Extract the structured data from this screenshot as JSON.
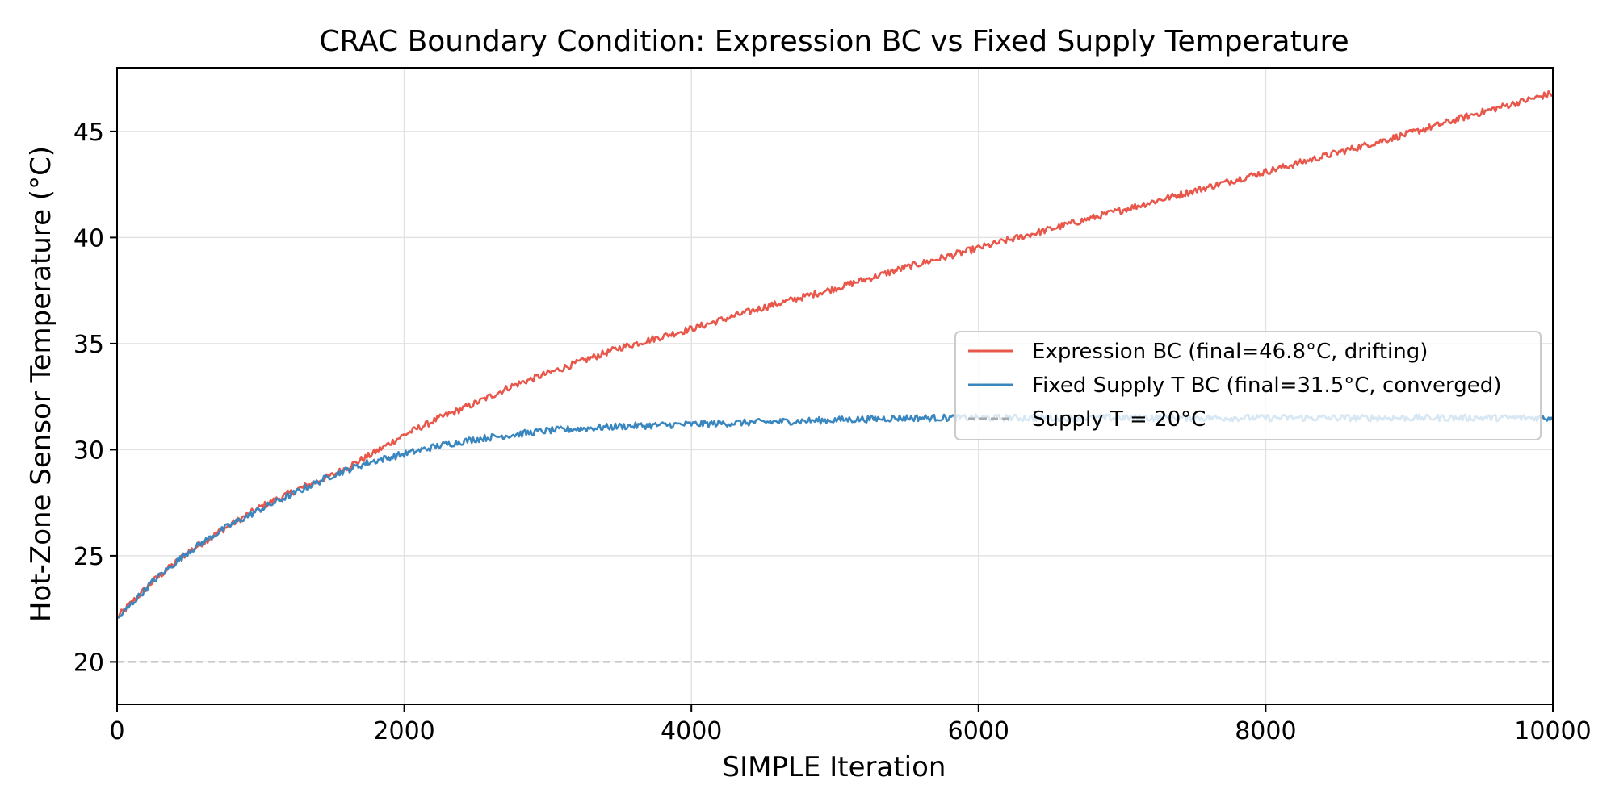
{
  "chart_data": {
    "type": "line",
    "title": "CRAC Boundary Condition: Expression BC vs Fixed Supply Temperature",
    "xlabel": "SIMPLE Iteration",
    "ylabel": "Hot-Zone Sensor Temperature (°C)",
    "xlim": [
      0,
      10000
    ],
    "ylim": [
      18,
      48
    ],
    "xticks": [
      0,
      2000,
      4000,
      6000,
      8000,
      10000
    ],
    "xtick_labels": [
      "0",
      "2000",
      "4000",
      "6000",
      "8000",
      "10000"
    ],
    "yticks": [
      20,
      25,
      30,
      35,
      40,
      45
    ],
    "ytick_labels": [
      "20",
      "25",
      "30",
      "35",
      "40",
      "45"
    ],
    "grid": true,
    "legend_position": "center-right",
    "series": [
      {
        "name": "Expression BC (final=46.8°C, drifting)",
        "color": "#e8574a",
        "style": "solid",
        "x": [
          0,
          250,
          500,
          750,
          1000,
          1250,
          1500,
          1750,
          2000,
          2250,
          2500,
          2750,
          3000,
          3500,
          4000,
          4500,
          5000,
          5500,
          6000,
          6500,
          7000,
          7500,
          8000,
          8500,
          9000,
          9500,
          10000
        ],
        "y": [
          22.1,
          23.8,
          25.2,
          26.3,
          27.3,
          28.1,
          28.8,
          29.7,
          30.7,
          31.5,
          32.2,
          33.0,
          33.6,
          34.8,
          35.7,
          36.7,
          37.6,
          38.6,
          39.5,
          40.4,
          41.3,
          42.2,
          43.1,
          44.0,
          44.9,
          45.9,
          46.8
        ]
      },
      {
        "name": "Fixed Supply T BC (final=31.5°C, converged)",
        "color": "#3a87c0",
        "style": "solid",
        "x": [
          0,
          250,
          500,
          750,
          1000,
          1250,
          1500,
          1750,
          2000,
          2250,
          2500,
          2750,
          3000,
          3500,
          4000,
          4500,
          5000,
          5500,
          6000,
          6500,
          7000,
          7500,
          8000,
          8500,
          9000,
          9500,
          10000
        ],
        "y": [
          22.0,
          23.8,
          25.2,
          26.3,
          27.2,
          28.0,
          28.8,
          29.4,
          29.8,
          30.2,
          30.5,
          30.7,
          30.9,
          31.1,
          31.2,
          31.3,
          31.4,
          31.5,
          31.5,
          31.5,
          31.5,
          31.5,
          31.5,
          31.5,
          31.5,
          31.5,
          31.5
        ]
      },
      {
        "name": "Supply T = 20°C",
        "color": "#aaaaaa",
        "style": "dashed",
        "x": [
          0,
          10000
        ],
        "y": [
          20,
          20
        ]
      }
    ]
  }
}
